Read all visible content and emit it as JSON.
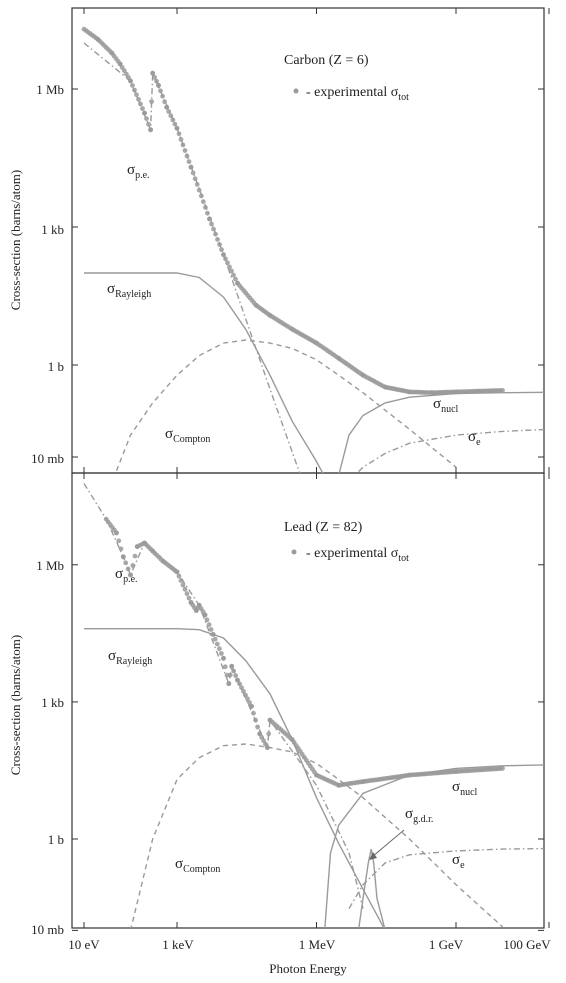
{
  "chart_data": [
    {
      "type": "line",
      "panel": "Carbon (Z = 6)",
      "legend": "- experimental σtot",
      "legend_placement": "top-right",
      "xlabel": "Photon Energy",
      "ylabel": "Cross-section (barns/atom)",
      "x_scale": "log",
      "y_scale": "log",
      "x_ticks": [
        "10 eV",
        "1 keV",
        "1 MeV",
        "1 GeV",
        "100 GeV"
      ],
      "y_ticks": [
        "1 Mb",
        "1 kb",
        "1 b",
        "10 mb"
      ],
      "xlim_eV": [
        10,
        200000000000
      ],
      "ylim_barns": [
        0.006,
        50000000
      ],
      "grid": false,
      "series": [
        {
          "name": "experimental σtot",
          "style": "markers",
          "color": "#9a9a9a",
          "x_eV": [
            10,
            20,
            40,
            60,
            100,
            200,
            270,
            300,
            400,
            600,
            1000,
            2000,
            5000,
            10000,
            20000,
            50000,
            100000,
            300000,
            1000000,
            3000000,
            10000000,
            30000000,
            100000000,
            300000000,
            1000000000,
            3000000000,
            10000000000
          ],
          "y_barns": [
            20000000,
            12000000,
            6000000,
            3500000,
            1500000,
            300000,
            130000,
            2200000,
            1200000,
            400000,
            140000,
            20000,
            1500,
            250,
            60,
            20,
            12,
            6,
            3,
            1.4,
            0.6,
            0.33,
            0.26,
            0.25,
            0.26,
            0.27,
            0.28
          ]
        },
        {
          "name": "σp.e.",
          "style": "dash-dot",
          "color": "#9a9a9a",
          "x_eV": [
            10,
            100,
            270,
            300,
            1000,
            10000,
            100000,
            500000
          ],
          "y_barns": [
            10000000,
            1500000,
            130000,
            2200000,
            140000,
            250,
            0.3,
            0.003
          ]
        },
        {
          "name": "σRayleigh",
          "style": "solid",
          "color": "#9a9a9a",
          "x_eV": [
            10,
            1000,
            3000,
            10000,
            30000,
            100000,
            300000,
            1000000,
            3000000
          ],
          "y_barns": [
            100,
            100,
            80,
            30,
            6,
            0.6,
            0.06,
            0.008,
            0.001
          ]
        },
        {
          "name": "σCompton",
          "style": "dashed",
          "color": "#9a9a9a",
          "x_eV": [
            50,
            100,
            300,
            1000,
            3000,
            10000,
            30000,
            100000,
            300000,
            1000000,
            3000000,
            10000000,
            100000000,
            1000000000
          ],
          "y_barns": [
            0.005,
            0.03,
            0.15,
            0.6,
            1.6,
            3,
            3.5,
            3,
            2.3,
            1.3,
            0.6,
            0.25,
            0.04,
            0.006
          ]
        },
        {
          "name": "σnucl",
          "style": "solid",
          "color": "#9a9a9a",
          "x_eV": [
            3000000,
            5000000,
            10000000,
            30000000,
            100000000,
            1000000000,
            10000000000,
            100000000000,
            200000000000
          ],
          "y_barns": [
            0.004,
            0.03,
            0.08,
            0.15,
            0.2,
            0.24,
            0.25,
            0.255,
            0.255
          ]
        },
        {
          "name": "σe",
          "style": "dash-dot",
          "color": "#9a9a9a",
          "x_eV": [
            5000000,
            10000000,
            30000000,
            100000000,
            1000000000,
            10000000000,
            100000000000,
            200000000000
          ],
          "y_barns": [
            0.003,
            0.006,
            0.012,
            0.02,
            0.03,
            0.036,
            0.04,
            0.04
          ]
        }
      ]
    },
    {
      "type": "line",
      "panel": "Lead (Z = 82)",
      "legend": "- experimental σtot",
      "legend_placement": "top-right",
      "xlabel": "Photon Energy",
      "ylabel": "Cross-section (barns/atom)",
      "x_scale": "log",
      "y_scale": "log",
      "x_ticks": [
        "10 eV",
        "1 keV",
        "1 MeV",
        "1 GeV",
        "100 GeV"
      ],
      "y_ticks": [
        "1 Mb",
        "1 kb",
        "1 b",
        "10 mb"
      ],
      "xlim_eV": [
        10,
        200000000000
      ],
      "ylim_barns": [
        0.01,
        70000000
      ],
      "grid": false,
      "series": [
        {
          "name": "experimental σtot",
          "style": "markers",
          "color": "#9a9a9a",
          "x_eV": [
            30,
            50,
            70,
            100,
            140,
            200,
            300,
            500,
            1000,
            2000,
            2600,
            3000,
            4000,
            6000,
            10000,
            13000,
            15000,
            20000,
            40000,
            60000,
            88000,
            100000,
            300000,
            1000000,
            3000000,
            10000000,
            100000000,
            1000000000,
            10000000000
          ],
          "y_barns": [
            10000000,
            5000000,
            1500000,
            600000,
            2500000,
            3000000,
            2000000,
            1200000,
            700000,
            150000,
            100000,
            130000,
            80000,
            30000,
            9000,
            2500,
            6000,
            3000,
            800,
            200,
            100,
            400,
            150,
            25,
            15,
            18,
            25,
            30,
            35
          ]
        },
        {
          "name": "σp.e.",
          "style": "dash-dot",
          "color": "#9a9a9a",
          "x_eV": [
            10,
            30,
            70,
            100,
            200,
            1000,
            3000,
            13000,
            15000,
            88000,
            100000,
            1000000,
            5000000,
            10000000
          ],
          "y_barns": [
            60000000,
            10000000,
            1500000,
            600000,
            3000000,
            700000,
            130000,
            2500,
            6000,
            100,
            400,
            15,
            0.5,
            0.03
          ]
        },
        {
          "name": "σRayleigh",
          "style": "solid",
          "color": "#9a9a9a",
          "x_eV": [
            10,
            1000,
            3000,
            10000,
            30000,
            100000,
            300000,
            1000000,
            3000000,
            10000000,
            30000000
          ],
          "y_barns": [
            40000,
            40000,
            38000,
            25000,
            8000,
            1500,
            150,
            8,
            0.8,
            0.08,
            0.01
          ]
        },
        {
          "name": "σCompton",
          "style": "dashed",
          "color": "#9a9a9a",
          "x_eV": [
            100,
            300,
            1000,
            3000,
            10000,
            30000,
            100000,
            300000,
            1000000,
            3000000,
            10000000,
            100000000,
            1000000000,
            10000000000
          ],
          "y_barns": [
            0.01,
            1,
            20,
            60,
            110,
            120,
            100,
            80,
            45,
            20,
            8,
            1,
            0.1,
            0.012
          ]
        },
        {
          "name": "σnucl",
          "style": "solid",
          "color": "#9a9a9a",
          "x_eV": [
            1500000,
            2000000,
            3000000,
            10000000,
            100000000,
            1000000000,
            10000000000,
            100000000000,
            200000000000
          ],
          "y_barns": [
            0.01,
            0.5,
            2,
            10,
            25,
            35,
            40,
            42,
            42
          ]
        },
        {
          "name": "σg.d.r.",
          "style": "solid-peak",
          "color": "#9a9a9a",
          "x_eV": [
            8000000,
            10000000,
            13000000,
            15000000,
            17000000,
            20000000,
            30000000
          ],
          "y_barns": [
            0.01,
            0.05,
            0.3,
            0.6,
            0.3,
            0.05,
            0.01
          ]
        },
        {
          "name": "σe",
          "style": "dash-dot",
          "color": "#9a9a9a",
          "x_eV": [
            5000000,
            10000000,
            30000000,
            100000000,
            1000000000,
            10000000000,
            100000000000,
            200000000000
          ],
          "y_barns": [
            0.03,
            0.1,
            0.3,
            0.45,
            0.55,
            0.6,
            0.62,
            0.62
          ]
        }
      ]
    }
  ],
  "labels": {
    "xlabel": "Photon Energy",
    "ylabel": "Cross-section (barns/atom)",
    "x_ticks": [
      "10 eV",
      "1 keV",
      "1 MeV",
      "1 GeV",
      "100 GeV"
    ],
    "carbon": {
      "panel": "Carbon (Z = 6)",
      "legend_text": "- experimental σ",
      "legend_sub": "tot",
      "y_ticks": [
        "1 Mb",
        "1 kb",
        "1 b",
        "10 mb"
      ],
      "pe": "σ",
      "pe_sub": "p.e.",
      "rayleigh": "σ",
      "rayleigh_sub": "Rayleigh",
      "compton": "σ",
      "compton_sub": "Compton",
      "nucl": "σ",
      "nucl_sub": "nucl",
      "e": "σ",
      "e_sub": "e"
    },
    "lead": {
      "panel": "Lead (Z = 82)",
      "legend_text": "- experimental σ",
      "legend_sub": "tot",
      "y_ticks": [
        "1 Mb",
        "1 kb",
        "1 b",
        "10 mb"
      ],
      "pe": "σ",
      "pe_sub": "p.e.",
      "rayleigh": "σ",
      "rayleigh_sub": "Rayleigh",
      "compton": "σ",
      "compton_sub": "Compton",
      "nucl": "σ",
      "nucl_sub": "nucl",
      "gdr": "σ",
      "gdr_sub": "g.d.r.",
      "e": "σ",
      "e_sub": "e"
    }
  }
}
